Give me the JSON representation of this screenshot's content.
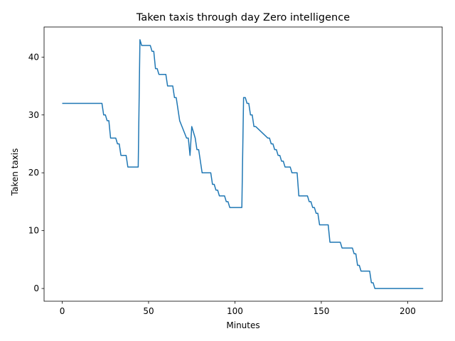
{
  "chart_data": {
    "type": "line",
    "title": "Taken taxis through day Zero intelligence",
    "xlabel": "Minutes",
    "ylabel": "Taken taxis",
    "xlim": [
      -10.5,
      220
    ],
    "ylim": [
      -2.2,
      45.2
    ],
    "xticks": [
      0,
      50,
      100,
      150,
      200
    ],
    "yticks": [
      0,
      10,
      20,
      30,
      40
    ],
    "grid": false,
    "color": "#1f77b4",
    "series": [
      {
        "x": [
          0,
          23,
          24,
          25,
          26,
          27,
          28,
          31,
          32,
          33,
          34,
          37,
          38,
          44,
          45,
          46,
          51,
          52,
          53,
          54,
          55,
          56,
          60,
          61,
          64,
          65,
          66,
          67,
          68,
          72,
          73,
          74,
          75,
          77,
          78,
          79,
          80,
          81,
          86,
          87,
          88,
          89,
          90,
          91,
          94,
          95,
          96,
          97,
          104,
          105,
          106,
          107,
          108,
          109,
          110,
          111,
          112,
          119,
          120,
          121,
          122,
          123,
          124,
          125,
          126,
          127,
          128,
          129,
          132,
          133,
          136,
          137,
          142,
          143,
          144,
          145,
          146,
          147,
          148,
          149,
          154,
          155,
          161,
          162,
          167,
          168,
          169,
          170,
          171,
          172,
          173,
          178,
          179,
          180,
          181,
          209
        ],
        "y": [
          32,
          32,
          30,
          30,
          29,
          29,
          26,
          26,
          25,
          25,
          23,
          23,
          21,
          21,
          43,
          42,
          42,
          41,
          41,
          38,
          38,
          37,
          37,
          35,
          35,
          33,
          33,
          31,
          29,
          26,
          26,
          23,
          28,
          26,
          24,
          24,
          22,
          20,
          20,
          18,
          18,
          17,
          17,
          16,
          16,
          15,
          15,
          14,
          14,
          33,
          33,
          32,
          32,
          30,
          30,
          28,
          28,
          26,
          26,
          25,
          25,
          24,
          24,
          23,
          23,
          22,
          22,
          21,
          21,
          20,
          20,
          16,
          16,
          15,
          15,
          14,
          14,
          13,
          13,
          11,
          11,
          8,
          8,
          7,
          7,
          7,
          6,
          6,
          4,
          4,
          3,
          3,
          1,
          1,
          0,
          0
        ]
      }
    ]
  }
}
